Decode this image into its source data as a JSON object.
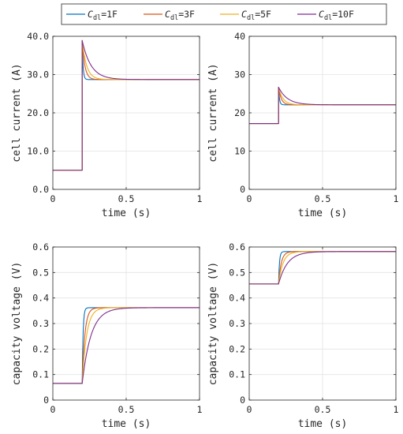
{
  "colors": {
    "series": [
      "#0072BD",
      "#D95319",
      "#EDB120",
      "#7E2F8E"
    ],
    "axis": "#262626",
    "grid": "#e3e3e3"
  },
  "legend": {
    "placement": "top-center",
    "entries": [
      {
        "symbol": "C",
        "sub": "dl",
        "value": "=1F"
      },
      {
        "symbol": "C",
        "sub": "dl",
        "value": "=3F"
      },
      {
        "symbol": "C",
        "sub": "dl",
        "value": "=5F"
      },
      {
        "symbol": "C",
        "sub": "dl",
        "value": "=10F"
      }
    ]
  },
  "chart_data": [
    {
      "type": "line",
      "xlabel": "time (s)",
      "ylabel": "cell current (A)",
      "xlim": [
        0,
        1
      ],
      "ylim": [
        0,
        40
      ],
      "xticks": [
        0,
        0.5,
        1
      ],
      "xtick_labels": [
        "0",
        "0.5",
        "1"
      ],
      "yticks": [
        0,
        10,
        20,
        30,
        40
      ],
      "ytick_labels": [
        "0.0",
        "10.0",
        "20.0",
        "30.0",
        "40.0"
      ],
      "grid": true,
      "step_time": 0.2,
      "initial_value": 5.0,
      "series": [
        {
          "name": "Cdl=1F",
          "peak": 38.9,
          "final": 28.7,
          "tau": 0.006
        },
        {
          "name": "Cdl=3F",
          "peak": 38.9,
          "final": 28.7,
          "tau": 0.018
        },
        {
          "name": "Cdl=5F",
          "peak": 38.9,
          "final": 28.7,
          "tau": 0.03
        },
        {
          "name": "Cdl=10F",
          "peak": 38.9,
          "final": 28.7,
          "tau": 0.06
        }
      ]
    },
    {
      "type": "line",
      "xlabel": "time (s)",
      "ylabel": "cell current (A)",
      "xlim": [
        0,
        1
      ],
      "ylim": [
        0,
        40
      ],
      "xticks": [
        0,
        0.5,
        1
      ],
      "xtick_labels": [
        "0",
        "0.5",
        "1"
      ],
      "yticks": [
        0,
        10,
        20,
        30,
        40
      ],
      "ytick_labels": [
        "0",
        "10",
        "20",
        "30",
        "40"
      ],
      "grid": true,
      "step_time": 0.2,
      "initial_value": 17.2,
      "series": [
        {
          "name": "Cdl=1F",
          "peak": 26.7,
          "final": 22.1,
          "tau": 0.006
        },
        {
          "name": "Cdl=3F",
          "peak": 26.7,
          "final": 22.1,
          "tau": 0.018
        },
        {
          "name": "Cdl=5F",
          "peak": 26.7,
          "final": 22.1,
          "tau": 0.03
        },
        {
          "name": "Cdl=10F",
          "peak": 26.7,
          "final": 22.1,
          "tau": 0.06
        }
      ]
    },
    {
      "type": "line",
      "xlabel": "time (s)",
      "ylabel": "capacity voltage (V)",
      "xlim": [
        0,
        1
      ],
      "ylim": [
        0,
        0.6
      ],
      "xticks": [
        0,
        0.5,
        1
      ],
      "xtick_labels": [
        "0",
        "0.5",
        "1"
      ],
      "yticks": [
        0,
        0.1,
        0.2,
        0.3,
        0.4,
        0.5,
        0.6
      ],
      "ytick_labels": [
        "0",
        "0.1",
        "0.2",
        "0.3",
        "0.4",
        "0.5",
        "0.6"
      ],
      "grid": true,
      "step_time": 0.2,
      "initial_value": 0.065,
      "series": [
        {
          "name": "Cdl=1F",
          "final": 0.362,
          "tau": 0.006
        },
        {
          "name": "Cdl=3F",
          "final": 0.362,
          "tau": 0.018
        },
        {
          "name": "Cdl=5F",
          "final": 0.362,
          "tau": 0.03
        },
        {
          "name": "Cdl=10F",
          "final": 0.362,
          "tau": 0.06
        }
      ]
    },
    {
      "type": "line",
      "xlabel": "time (s)",
      "ylabel": "capacity voltage (V)",
      "xlim": [
        0,
        1
      ],
      "ylim": [
        0,
        0.6
      ],
      "xticks": [
        0,
        0.5,
        1
      ],
      "xtick_labels": [
        "0",
        "0.5",
        "1"
      ],
      "yticks": [
        0,
        0.1,
        0.2,
        0.3,
        0.4,
        0.5,
        0.6
      ],
      "ytick_labels": [
        "0",
        "0.1",
        "0.2",
        "0.3",
        "0.4",
        "0.5",
        "0.6"
      ],
      "grid": true,
      "step_time": 0.2,
      "initial_value": 0.455,
      "series": [
        {
          "name": "Cdl=1F",
          "final": 0.582,
          "tau": 0.006
        },
        {
          "name": "Cdl=3F",
          "final": 0.582,
          "tau": 0.018
        },
        {
          "name": "Cdl=5F",
          "final": 0.582,
          "tau": 0.03
        },
        {
          "name": "Cdl=10F",
          "final": 0.582,
          "tau": 0.06
        }
      ]
    }
  ]
}
